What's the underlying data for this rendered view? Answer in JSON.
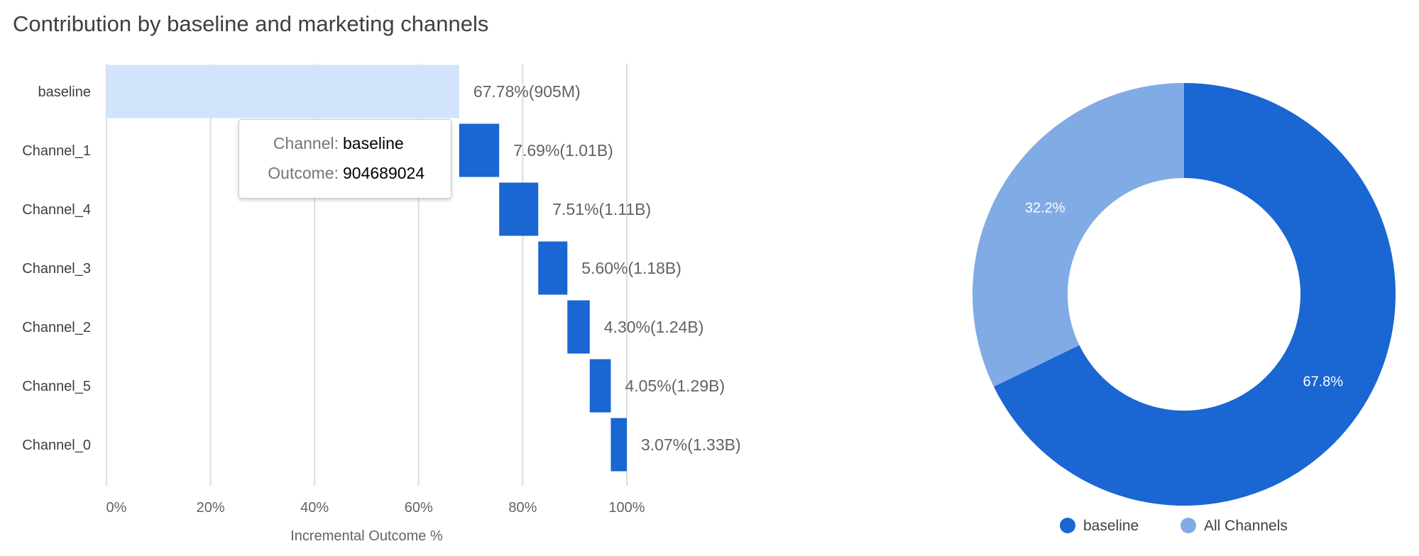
{
  "chart_data": [
    {
      "type": "bar",
      "subtype": "waterfall-horizontal",
      "title": "Contribution by baseline and marketing channels",
      "xlabel": "Incremental Outcome %",
      "ylabel": "",
      "xlim": [
        0,
        100
      ],
      "x_ticks": [
        "0%",
        "20%",
        "40%",
        "60%",
        "80%",
        "100%"
      ],
      "grid": true,
      "categories": [
        "baseline",
        "Channel_1",
        "Channel_4",
        "Channel_3",
        "Channel_2",
        "Channel_5",
        "Channel_0"
      ],
      "values": [
        67.78,
        7.69,
        7.51,
        5.6,
        4.3,
        4.05,
        3.07
      ],
      "data_labels": [
        "67.78%(905M)",
        "7.69%(1.01B)",
        "7.51%(1.11B)",
        "5.60%(1.18B)",
        "4.30%(1.24B)",
        "4.05%(1.29B)",
        "3.07%(1.33B)"
      ],
      "colors": {
        "baseline": "#d2e3fc",
        "channel": "#1a66d2"
      },
      "tooltip": {
        "channel_key": "Channel:",
        "channel_value": "baseline",
        "outcome_key": "Outcome:",
        "outcome_value": "904689024"
      }
    },
    {
      "type": "pie",
      "subtype": "donut",
      "categories": [
        "baseline",
        "All Channels"
      ],
      "values": [
        67.8,
        32.2
      ],
      "data_labels": [
        "67.8%",
        "32.2%"
      ],
      "colors": [
        "#1a66d2",
        "#80abe5"
      ],
      "legend": "bottom"
    }
  ]
}
